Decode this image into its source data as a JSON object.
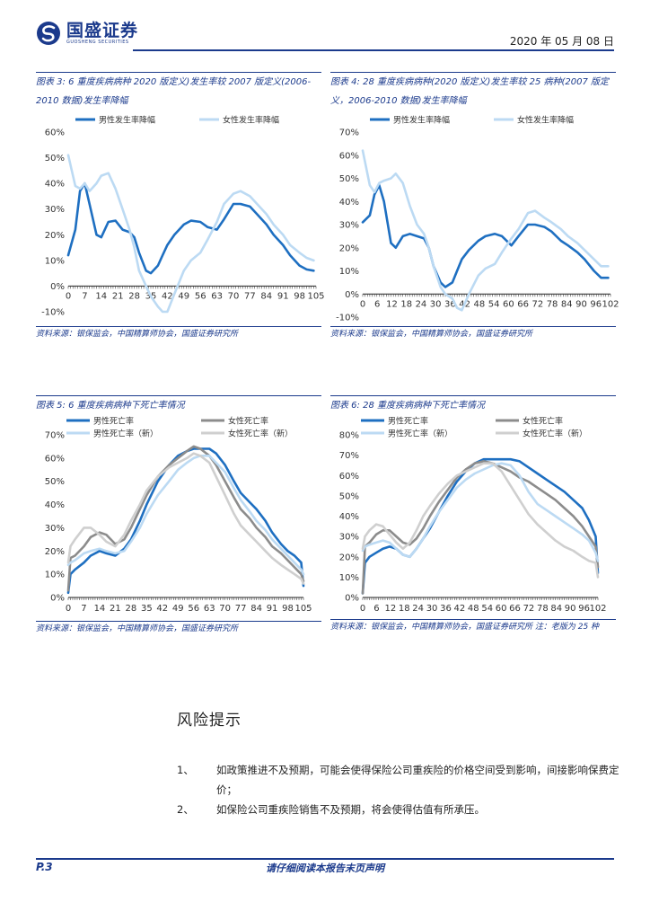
{
  "header": {
    "logo_cn": "国盛证券",
    "logo_en": "GUOSHENG SECURITIES",
    "date": "2020 年 05 月 08 日"
  },
  "colors": {
    "brand": "#1b3a8c",
    "dark_blue": "#1e6fc1",
    "light_blue": "#bcdaf3",
    "dark_gray": "#8c8c8c",
    "light_gray": "#cfcfcf"
  },
  "figures": [
    {
      "caption": "图表 3: 6 重度疾病病种 2020 版定义)发生率较 2007 版定义(2006-2010 数据)发生率降幅",
      "source": "资料来源：银保监会，中国精算师协会，国盛证券研究所"
    },
    {
      "caption": "图表 4: 28 重度疾病病种(2020 版定义)发生率较 25 病种(2007 版定义，2006-2010 数据)发生率降幅",
      "source": "资料来源：银保监会，中国精算师协会，国盛证券研究所"
    },
    {
      "caption": "图表 5: 6 重度疾病病种下死亡率情况",
      "source": "资料来源：银保监会，中国精算师协会，国盛证券研究所"
    },
    {
      "caption": "图表 6: 28 重度疾病病种下死亡率情况",
      "source": "资料来源：银保监会，中国精算师协会，国盛证券研究所 注：老版为 25 种"
    }
  ],
  "chart_data": [
    {
      "type": "line",
      "title": "",
      "x_ticks": [
        "0",
        "7",
        "14",
        "21",
        "28",
        "35",
        "42",
        "49",
        "56",
        "63",
        "70",
        "77",
        "84",
        "91",
        "98",
        "105"
      ],
      "ylim": [
        -0.1,
        0.6
      ],
      "y_ticks": [
        "-10%",
        "0%",
        "10%",
        "20%",
        "30%",
        "40%",
        "50%",
        "60%"
      ],
      "legend": "top",
      "x": [
        0,
        3,
        5,
        7,
        9,
        12,
        14,
        17,
        20,
        23,
        26,
        28,
        30,
        33,
        35,
        38,
        40,
        42,
        45,
        49,
        52,
        56,
        59,
        63,
        66,
        70,
        73,
        77,
        80,
        84,
        87,
        91,
        94,
        98,
        101,
        104
      ],
      "series": [
        {
          "name": "男性发生率降幅",
          "color": "#1e6fc1",
          "values": [
            0.12,
            0.22,
            0.37,
            0.4,
            0.32,
            0.2,
            0.19,
            0.25,
            0.255,
            0.22,
            0.21,
            0.19,
            0.13,
            0.06,
            0.05,
            0.08,
            0.12,
            0.16,
            0.2,
            0.24,
            0.255,
            0.25,
            0.23,
            0.22,
            0.26,
            0.32,
            0.32,
            0.31,
            0.28,
            0.24,
            0.2,
            0.16,
            0.12,
            0.08,
            0.065,
            0.06
          ]
        },
        {
          "name": "女性发生率降幅",
          "color": "#bcdaf3",
          "values": [
            0.51,
            0.39,
            0.38,
            0.4,
            0.37,
            0.4,
            0.43,
            0.44,
            0.38,
            0.3,
            0.22,
            0.15,
            0.06,
            0.0,
            -0.04,
            -0.08,
            -0.1,
            -0.1,
            -0.03,
            0.06,
            0.1,
            0.13,
            0.18,
            0.25,
            0.32,
            0.36,
            0.37,
            0.35,
            0.32,
            0.28,
            0.24,
            0.2,
            0.16,
            0.13,
            0.11,
            0.1
          ]
        }
      ]
    },
    {
      "type": "line",
      "title": "",
      "x_ticks": [
        "0",
        "6",
        "12",
        "18",
        "24",
        "30",
        "36",
        "42",
        "48",
        "54",
        "60",
        "66",
        "72",
        "78",
        "84",
        "90",
        "96",
        "102"
      ],
      "ylim": [
        -0.1,
        0.7
      ],
      "y_ticks": [
        "-10%",
        "0%",
        "10%",
        "20%",
        "30%",
        "40%",
        "50%",
        "60%",
        "70%"
      ],
      "legend": "top",
      "x": [
        0,
        3,
        5,
        7,
        9,
        12,
        14,
        17,
        20,
        23,
        26,
        28,
        30,
        33,
        35,
        38,
        40,
        42,
        45,
        49,
        52,
        56,
        59,
        63,
        66,
        70,
        73,
        77,
        80,
        84,
        87,
        91,
        94,
        98,
        101,
        104
      ],
      "series": [
        {
          "name": "男性发生率降幅",
          "color": "#1e6fc1",
          "values": [
            0.31,
            0.34,
            0.43,
            0.47,
            0.4,
            0.22,
            0.2,
            0.25,
            0.26,
            0.25,
            0.24,
            0.2,
            0.12,
            0.05,
            0.03,
            0.05,
            0.1,
            0.15,
            0.19,
            0.23,
            0.25,
            0.26,
            0.25,
            0.21,
            0.25,
            0.3,
            0.3,
            0.29,
            0.27,
            0.23,
            0.21,
            0.18,
            0.15,
            0.1,
            0.07,
            0.07
          ]
        },
        {
          "name": "女性发生率降幅",
          "color": "#bcdaf3",
          "values": [
            0.62,
            0.47,
            0.44,
            0.48,
            0.49,
            0.5,
            0.52,
            0.48,
            0.38,
            0.3,
            0.26,
            0.2,
            0.12,
            0.03,
            0.0,
            -0.02,
            -0.06,
            -0.07,
            0.0,
            0.08,
            0.11,
            0.13,
            0.18,
            0.24,
            0.28,
            0.35,
            0.36,
            0.33,
            0.31,
            0.28,
            0.25,
            0.22,
            0.19,
            0.15,
            0.12,
            0.12
          ]
        }
      ]
    },
    {
      "type": "line",
      "title": "",
      "x_ticks": [
        "0",
        "7",
        "14",
        "21",
        "28",
        "35",
        "42",
        "49",
        "56",
        "63",
        "70",
        "77",
        "84",
        "91",
        "98",
        "105"
      ],
      "ylim": [
        0,
        0.7
      ],
      "y_ticks": [
        "0%",
        "10%",
        "20%",
        "30%",
        "40%",
        "50%",
        "60%",
        "70%"
      ],
      "legend": "top",
      "x": [
        0,
        1,
        3,
        7,
        10,
        14,
        17,
        21,
        25,
        28,
        32,
        35,
        40,
        45,
        49,
        53,
        56,
        59,
        63,
        66,
        70,
        74,
        77,
        81,
        84,
        88,
        91,
        95,
        98,
        101,
        104,
        105
      ],
      "series": [
        {
          "name": "男性死亡率",
          "color": "#1e6fc1",
          "values": [
            0.02,
            0.1,
            0.12,
            0.15,
            0.18,
            0.2,
            0.19,
            0.18,
            0.21,
            0.25,
            0.33,
            0.4,
            0.5,
            0.57,
            0.61,
            0.63,
            0.64,
            0.64,
            0.64,
            0.62,
            0.57,
            0.5,
            0.45,
            0.41,
            0.38,
            0.33,
            0.28,
            0.23,
            0.2,
            0.18,
            0.15,
            0.05
          ]
        },
        {
          "name": "女性死亡率",
          "color": "#8c8c8c",
          "values": [
            0.03,
            0.17,
            0.18,
            0.22,
            0.26,
            0.28,
            0.27,
            0.23,
            0.25,
            0.3,
            0.38,
            0.44,
            0.52,
            0.57,
            0.6,
            0.63,
            0.65,
            0.64,
            0.61,
            0.57,
            0.5,
            0.43,
            0.38,
            0.34,
            0.3,
            0.26,
            0.22,
            0.19,
            0.16,
            0.13,
            0.1,
            0.07
          ]
        },
        {
          "name": "男性死亡率（新）",
          "color": "#bcdaf3",
          "values": [
            0.14,
            0.15,
            0.16,
            0.19,
            0.2,
            0.21,
            0.2,
            0.19,
            0.2,
            0.24,
            0.3,
            0.36,
            0.44,
            0.5,
            0.55,
            0.58,
            0.6,
            0.61,
            0.61,
            0.58,
            0.54,
            0.47,
            0.42,
            0.37,
            0.33,
            0.29,
            0.25,
            0.21,
            0.18,
            0.15,
            0.12,
            0.1
          ]
        },
        {
          "name": "女性死亡率（新）",
          "color": "#cfcfcf",
          "values": [
            0.15,
            0.22,
            0.25,
            0.3,
            0.3,
            0.27,
            0.24,
            0.22,
            0.27,
            0.33,
            0.4,
            0.46,
            0.52,
            0.56,
            0.58,
            0.6,
            0.62,
            0.61,
            0.58,
            0.52,
            0.44,
            0.36,
            0.31,
            0.27,
            0.24,
            0.2,
            0.17,
            0.14,
            0.12,
            0.1,
            0.08,
            0.06
          ]
        }
      ]
    },
    {
      "type": "line",
      "title": "",
      "x_ticks": [
        "0",
        "6",
        "12",
        "18",
        "24",
        "30",
        "36",
        "42",
        "48",
        "54",
        "60",
        "66",
        "72",
        "78",
        "84",
        "90",
        "96",
        "102"
      ],
      "ylim": [
        0,
        0.8
      ],
      "y_ticks": [
        "0%",
        "10%",
        "20%",
        "30%",
        "40%",
        "50%",
        "60%",
        "70%",
        "80%"
      ],
      "legend": "top",
      "x": [
        0,
        1,
        3,
        6,
        9,
        12,
        15,
        18,
        21,
        24,
        27,
        30,
        34,
        38,
        42,
        46,
        50,
        54,
        58,
        62,
        66,
        70,
        74,
        78,
        82,
        86,
        90,
        94,
        98,
        101,
        104,
        105
      ],
      "series": [
        {
          "name": "男性死亡率",
          "color": "#1e6fc1",
          "values": [
            0.02,
            0.17,
            0.2,
            0.22,
            0.24,
            0.25,
            0.24,
            0.21,
            0.2,
            0.24,
            0.29,
            0.34,
            0.42,
            0.5,
            0.57,
            0.62,
            0.66,
            0.68,
            0.68,
            0.68,
            0.68,
            0.67,
            0.64,
            0.61,
            0.58,
            0.55,
            0.52,
            0.48,
            0.44,
            0.38,
            0.3,
            0.12
          ]
        },
        {
          "name": "女性死亡率",
          "color": "#8c8c8c",
          "values": [
            0.02,
            0.25,
            0.27,
            0.31,
            0.33,
            0.33,
            0.3,
            0.27,
            0.26,
            0.29,
            0.34,
            0.4,
            0.47,
            0.53,
            0.59,
            0.63,
            0.66,
            0.67,
            0.66,
            0.64,
            0.62,
            0.59,
            0.57,
            0.54,
            0.51,
            0.48,
            0.44,
            0.4,
            0.35,
            0.3,
            0.25,
            0.15
          ]
        },
        {
          "name": "男性死亡率（新）",
          "color": "#bcdaf3",
          "values": [
            0.23,
            0.25,
            0.26,
            0.27,
            0.28,
            0.27,
            0.24,
            0.21,
            0.2,
            0.24,
            0.29,
            0.35,
            0.42,
            0.48,
            0.54,
            0.58,
            0.61,
            0.63,
            0.65,
            0.66,
            0.65,
            0.6,
            0.52,
            0.46,
            0.43,
            0.4,
            0.37,
            0.34,
            0.31,
            0.28,
            0.22,
            0.18
          ]
        },
        {
          "name": "女性死亡率（新）",
          "color": "#cfcfcf",
          "values": [
            0.24,
            0.3,
            0.33,
            0.36,
            0.35,
            0.31,
            0.27,
            0.24,
            0.27,
            0.33,
            0.4,
            0.45,
            0.51,
            0.56,
            0.6,
            0.62,
            0.64,
            0.66,
            0.66,
            0.62,
            0.55,
            0.48,
            0.41,
            0.36,
            0.32,
            0.28,
            0.25,
            0.23,
            0.2,
            0.18,
            0.17,
            0.1
          ]
        }
      ]
    }
  ],
  "risk": {
    "title": "风险提示",
    "items": [
      {
        "num": "1、",
        "text": "如政策推进不及预期，可能会使得保险公司重疾险的价格空间受到影响，间接影响保费定价；"
      },
      {
        "num": "2、",
        "text": "如保险公司重疾险销售不及预期，将会使得估值有所承压。"
      }
    ]
  },
  "footer": {
    "page": "P.3",
    "disclaimer": "请仔细阅读本报告末页声明"
  }
}
